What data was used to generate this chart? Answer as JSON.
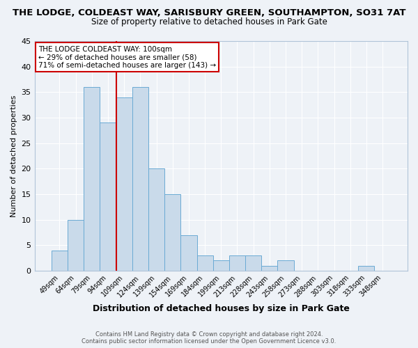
{
  "title": "THE LODGE, COLDEAST WAY, SARISBURY GREEN, SOUTHAMPTON, SO31 7AT",
  "subtitle": "Size of property relative to detached houses in Park Gate",
  "xlabel": "Distribution of detached houses by size in Park Gate",
  "ylabel": "Number of detached properties",
  "bar_color": "#c9daea",
  "bar_edge_color": "#6aaad4",
  "categories": [
    "49sqm",
    "64sqm",
    "79sqm",
    "94sqm",
    "109sqm",
    "124sqm",
    "139sqm",
    "154sqm",
    "169sqm",
    "184sqm",
    "199sqm",
    "213sqm",
    "228sqm",
    "243sqm",
    "258sqm",
    "273sqm",
    "288sqm",
    "303sqm",
    "318sqm",
    "333sqm",
    "348sqm"
  ],
  "values": [
    4,
    10,
    36,
    29,
    34,
    36,
    20,
    15,
    7,
    3,
    2,
    3,
    3,
    1,
    2,
    0,
    0,
    0,
    0,
    1,
    0
  ],
  "ylim": [
    0,
    45
  ],
  "yticks": [
    0,
    5,
    10,
    15,
    20,
    25,
    30,
    35,
    40,
    45
  ],
  "vline_index": 3,
  "vline_color": "#cc0000",
  "annotation_line1": "THE LODGE COLDEAST WAY: 100sqm",
  "annotation_line2": "← 29% of detached houses are smaller (58)",
  "annotation_line3": "71% of semi-detached houses are larger (143) →",
  "annotation_box_color": "#ffffff",
  "annotation_box_edge": "#cc0000",
  "footer_line1": "Contains HM Land Registry data © Crown copyright and database right 2024.",
  "footer_line2": "Contains public sector information licensed under the Open Government Licence v3.0.",
  "bg_color": "#eef2f7",
  "grid_color": "#ffffff",
  "title_fontsize": 9.5,
  "subtitle_fontsize": 8.5
}
